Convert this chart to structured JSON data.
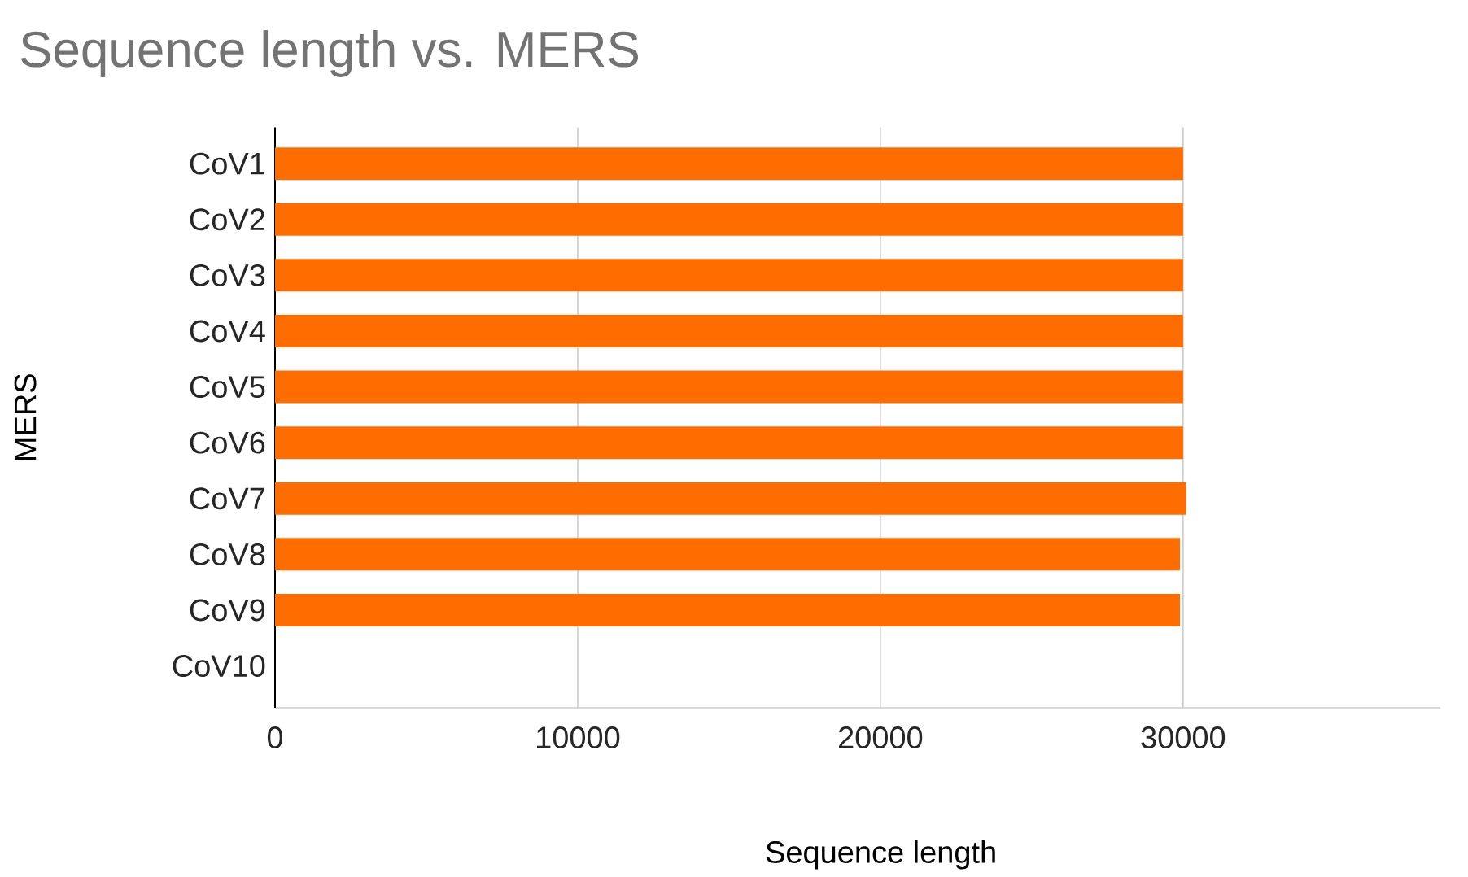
{
  "chart_data": {
    "type": "bar",
    "orientation": "horizontal",
    "title": "Sequence length vs. MERS",
    "xlabel": "Sequence length",
    "ylabel": "MERS",
    "categories": [
      "CoV1",
      "CoV2",
      "CoV3",
      "CoV4",
      "CoV5",
      "CoV6",
      "CoV7",
      "CoV8",
      "CoV9",
      "CoV10"
    ],
    "values": [
      30000,
      30000,
      30000,
      30000,
      30000,
      30000,
      30100,
      29900,
      29900,
      null
    ],
    "color": "#ff6d01",
    "xlim": [
      0,
      38500
    ],
    "xticks": [
      0,
      10000,
      20000,
      30000
    ],
    "grid": "x"
  }
}
